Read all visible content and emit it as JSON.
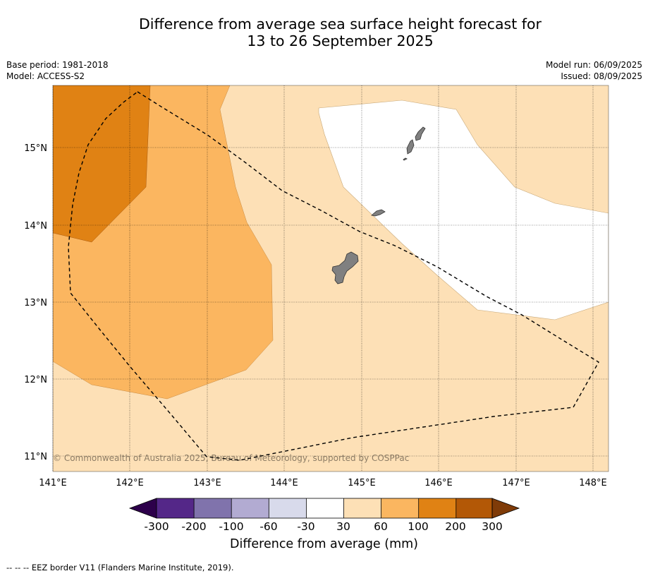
{
  "header": {
    "title_line1": "Difference from average sea surface height forecast for",
    "title_line2": "13 to 26 September 2025",
    "base_period": "Base period: 1981-2018",
    "model": "Model: ACCESS-S2",
    "model_run": "Model run: 06/09/2025",
    "issued": "Issued: 08/09/2025"
  },
  "map": {
    "lon_labels": [
      "141°E",
      "142°E",
      "143°E",
      "144°E",
      "145°E",
      "146°E",
      "147°E",
      "148°E"
    ],
    "lat_labels": [
      "15°N",
      "14°N",
      "13°N",
      "12°N",
      "11°N"
    ],
    "copyright": "© Commonwealth of Australia 2025, Bureau of Meteorology, supported by COSPPac",
    "colors": {
      "c_minus300_under": "#2d004b",
      "c_minus300_minus200": "#542788",
      "c_minus200_minus100": "#8073ac",
      "c_minus100_minus60": "#b2abd2",
      "c_minus60_minus30": "#d8daeb",
      "c_minus30_30": "#ffffff",
      "c_30_60": "#fde0b6",
      "c_60_100": "#fbb660",
      "c_100_200": "#e08214",
      "c_200_300": "#b35806",
      "c_300_over": "#7f3b08",
      "land": "#808080"
    }
  },
  "colorbar": {
    "ticks": [
      "-300",
      "-200",
      "-100",
      "-60",
      "-30",
      "30",
      "60",
      "100",
      "200",
      "300"
    ],
    "label": "Difference from average (mm)"
  },
  "footnote": "--  --  -- EEZ border V11 (Flanders Marine Institute, 2019)."
}
